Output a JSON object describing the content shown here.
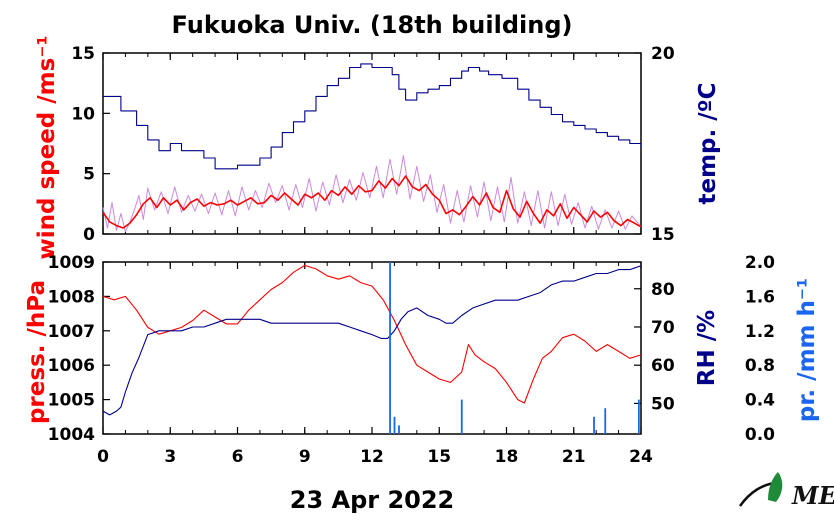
{
  "colors": {
    "wind": "#ff0000",
    "wind_raw": "#cc88dd",
    "temp": "#00008b",
    "pressure": "#ff0000",
    "rh": "#00008b",
    "precip": "#1a66ee"
  },
  "logo": {
    "text": "MES",
    "icon": "leaf-logo-icon"
  },
  "chart_data": [
    {
      "type": "line",
      "title": "Fukuoka Univ. (18th building)",
      "xlabel": "",
      "x_ticks": [
        0,
        3,
        6,
        9,
        12,
        15,
        18,
        21,
        24
      ],
      "x_tick_labels": [
        "0",
        "3",
        "6",
        "9",
        "12",
        "15",
        "18",
        "21",
        "24"
      ],
      "xlim": [
        0,
        24
      ],
      "y_left": {
        "label": "wind speed /ms⁻¹",
        "lim": [
          0,
          15
        ],
        "ticks": [
          "0",
          "5",
          "10",
          "15"
        ]
      },
      "y_right": {
        "label": "temp. /ºC",
        "lim": [
          15,
          20
        ],
        "ticks": [
          "15",
          "20"
        ]
      },
      "series": [
        {
          "name": "",
          "axis": "right",
          "style": "step",
          "x": [
            0,
            0.5,
            0.8,
            1.5,
            2,
            2.5,
            3,
            3.5,
            4,
            4.5,
            5,
            5.5,
            6,
            6.5,
            7,
            7.5,
            8,
            8.5,
            9,
            9.5,
            10,
            10.5,
            11,
            11.5,
            12,
            12.5,
            12.9,
            13.2,
            13.5,
            14,
            14.5,
            15,
            15.5,
            16,
            16.3,
            16.8,
            17.2,
            17.8,
            18.5,
            19,
            19.5,
            20,
            20.5,
            21,
            21.5,
            22,
            22.5,
            23,
            23.5,
            24
          ],
          "y": [
            18.8,
            18.8,
            18.4,
            18.0,
            17.6,
            17.3,
            17.5,
            17.3,
            17.3,
            17.1,
            16.8,
            16.8,
            16.9,
            16.9,
            17.1,
            17.4,
            17.8,
            18.1,
            18.4,
            18.8,
            19.1,
            19.3,
            19.6,
            19.7,
            19.6,
            19.6,
            19.4,
            19.0,
            18.7,
            18.9,
            19.0,
            19.1,
            19.3,
            19.5,
            19.6,
            19.5,
            19.4,
            19.3,
            19.0,
            18.7,
            18.5,
            18.3,
            18.1,
            18.0,
            17.9,
            17.8,
            17.7,
            17.6,
            17.5,
            17.4
          ]
        },
        {
          "name": "",
          "axis": "left",
          "style": "raw",
          "x": [
            0,
            0.2,
            0.4,
            0.6,
            0.8,
            1.0,
            1.2,
            1.4,
            1.6,
            1.8,
            2.0,
            2.3,
            2.6,
            2.9,
            3.2,
            3.5,
            3.8,
            4.1,
            4.4,
            4.7,
            5.0,
            5.3,
            5.6,
            5.9,
            6.2,
            6.5,
            6.8,
            7.1,
            7.4,
            7.7,
            8.0,
            8.3,
            8.6,
            8.9,
            9.2,
            9.5,
            9.8,
            10.1,
            10.4,
            10.7,
            11.0,
            11.3,
            11.6,
            11.9,
            12.2,
            12.5,
            12.8,
            13.1,
            13.4,
            13.7,
            14.0,
            14.3,
            14.6,
            14.9,
            15.2,
            15.5,
            15.8,
            16.1,
            16.4,
            16.7,
            17.0,
            17.3,
            17.6,
            17.9,
            18.2,
            18.5,
            18.8,
            19.1,
            19.4,
            19.7,
            20.0,
            20.3,
            20.6,
            20.9,
            21.2,
            21.5,
            21.8,
            22.1,
            22.4,
            22.7,
            23.0,
            23.3,
            23.6,
            24.0
          ],
          "y": [
            2.2,
            0.5,
            2.6,
            0.3,
            1.7,
            0.2,
            1.0,
            2.0,
            3.2,
            1.2,
            3.8,
            2.0,
            3.5,
            1.7,
            3.9,
            1.8,
            3.2,
            1.9,
            3.3,
            1.7,
            3.4,
            1.6,
            3.6,
            1.5,
            3.9,
            2.0,
            3.6,
            2.2,
            4.2,
            2.6,
            4.0,
            2.0,
            4.1,
            2.2,
            4.6,
            1.9,
            4.3,
            2.4,
            4.9,
            2.6,
            4.5,
            2.8,
            5.1,
            3.0,
            5.6,
            3.0,
            6.2,
            3.3,
            6.5,
            2.9,
            5.6,
            2.7,
            4.9,
            1.8,
            4.1,
            0.9,
            3.6,
            1.0,
            4.0,
            1.4,
            4.3,
            1.1,
            3.9,
            1.0,
            4.7,
            0.9,
            3.5,
            0.7,
            3.6,
            0.5,
            3.5,
            0.7,
            3.3,
            0.8,
            2.6,
            0.5,
            2.3,
            0.4,
            2.0,
            0.5,
            1.9,
            0.4,
            1.5,
            0.6
          ]
        },
        {
          "name": "",
          "axis": "left",
          "style": "smooth",
          "x": [
            0,
            0.3,
            0.6,
            0.9,
            1.2,
            1.5,
            1.8,
            2.1,
            2.4,
            2.7,
            3.0,
            3.3,
            3.6,
            3.9,
            4.2,
            4.5,
            4.8,
            5.1,
            5.4,
            5.7,
            6.0,
            6.3,
            6.6,
            6.9,
            7.2,
            7.5,
            7.8,
            8.1,
            8.4,
            8.7,
            9.0,
            9.3,
            9.6,
            9.9,
            10.2,
            10.5,
            10.8,
            11.1,
            11.4,
            11.7,
            12.0,
            12.3,
            12.6,
            12.9,
            13.2,
            13.5,
            13.8,
            14.1,
            14.4,
            14.7,
            15.0,
            15.3,
            15.6,
            15.9,
            16.2,
            16.5,
            16.8,
            17.1,
            17.4,
            17.7,
            18.0,
            18.3,
            18.6,
            18.9,
            19.2,
            19.5,
            19.8,
            20.1,
            20.4,
            20.7,
            21.0,
            21.3,
            21.6,
            21.9,
            22.2,
            22.5,
            22.8,
            23.1,
            23.4,
            23.7,
            24.0
          ],
          "y": [
            1.8,
            1.0,
            0.7,
            0.5,
            0.9,
            1.6,
            2.5,
            3.0,
            2.2,
            3.0,
            2.4,
            2.8,
            2.0,
            2.6,
            2.9,
            2.3,
            2.6,
            2.4,
            2.5,
            2.8,
            2.4,
            2.7,
            3.0,
            2.5,
            2.6,
            3.2,
            2.8,
            3.4,
            2.9,
            2.4,
            3.3,
            3.0,
            3.4,
            2.8,
            3.6,
            3.2,
            3.9,
            3.3,
            4.0,
            3.5,
            3.6,
            4.4,
            3.8,
            4.6,
            4.0,
            4.8,
            3.9,
            3.6,
            4.1,
            3.3,
            2.8,
            1.7,
            2.0,
            1.6,
            2.3,
            3.1,
            2.4,
            3.4,
            2.2,
            1.8,
            3.6,
            2.1,
            1.4,
            2.7,
            1.7,
            0.9,
            2.0,
            1.5,
            2.5,
            1.3,
            2.2,
            1.6,
            1.0,
            1.9,
            1.4,
            1.8,
            1.1,
            0.7,
            1.2,
            0.9,
            0.6
          ]
        }
      ]
    },
    {
      "type": "line",
      "xlabel": "23 Apr 2022",
      "x_ticks": [
        0,
        3,
        6,
        9,
        12,
        15,
        18,
        21,
        24
      ],
      "x_tick_labels": [
        "0",
        "3",
        "6",
        "9",
        "12",
        "15",
        "18",
        "21",
        "24"
      ],
      "xlim": [
        0,
        24
      ],
      "y_left": {
        "label": "press. /hPa",
        "lim": [
          1004,
          1009
        ],
        "ticks": [
          "1004",
          "1005",
          "1006",
          "1007",
          "1008",
          "1009"
        ]
      },
      "y_right": {
        "label": "RH /%",
        "lim": [
          42,
          87
        ],
        "ticks": [
          "50",
          "60",
          "70",
          "80"
        ]
      },
      "y_right2": {
        "label": "pr. /mm h⁻¹",
        "lim": [
          0,
          2
        ],
        "ticks": [
          "0.0",
          "0.4",
          "0.8",
          "1.2",
          "1.6",
          "2.0"
        ]
      },
      "series": [
        {
          "name": "",
          "axis": "left",
          "x": [
            0,
            0.5,
            1.0,
            1.5,
            2.0,
            2.5,
            3.0,
            3.5,
            4.0,
            4.5,
            5.0,
            5.5,
            6.0,
            6.5,
            7.0,
            7.5,
            8.0,
            8.5,
            9.0,
            9.5,
            10.0,
            10.5,
            11.0,
            11.5,
            12.0,
            12.5,
            13.0,
            13.5,
            14.0,
            14.5,
            15.0,
            15.5,
            16.0,
            16.3,
            16.6,
            17.0,
            17.5,
            18.0,
            18.5,
            18.8,
            19.2,
            19.6,
            20.0,
            20.5,
            21.0,
            21.5,
            22.0,
            22.5,
            23.0,
            23.5,
            24.0
          ],
          "y": [
            1008.0,
            1007.9,
            1008.0,
            1007.6,
            1007.1,
            1006.9,
            1007.0,
            1007.1,
            1007.3,
            1007.6,
            1007.4,
            1007.2,
            1007.2,
            1007.6,
            1007.9,
            1008.2,
            1008.4,
            1008.7,
            1008.9,
            1008.8,
            1008.6,
            1008.5,
            1008.6,
            1008.4,
            1008.3,
            1007.9,
            1007.3,
            1006.6,
            1006.0,
            1005.8,
            1005.6,
            1005.5,
            1005.8,
            1006.6,
            1006.3,
            1006.1,
            1005.9,
            1005.5,
            1005.0,
            1004.9,
            1005.6,
            1006.2,
            1006.4,
            1006.8,
            1006.9,
            1006.7,
            1006.4,
            1006.6,
            1006.4,
            1006.2,
            1006.3
          ]
        },
        {
          "name": "",
          "axis": "right",
          "x": [
            0,
            0.3,
            0.6,
            0.8,
            1.0,
            1.3,
            1.6,
            2.0,
            2.5,
            3.0,
            3.5,
            4.0,
            4.5,
            5.0,
            5.5,
            6.0,
            6.5,
            7.0,
            7.5,
            8.0,
            8.5,
            9.0,
            9.5,
            10.0,
            10.5,
            11.0,
            11.5,
            12.0,
            12.4,
            12.7,
            13.0,
            13.3,
            13.6,
            14.0,
            14.5,
            15.0,
            15.3,
            15.6,
            16.0,
            16.5,
            17.0,
            17.5,
            18.0,
            18.5,
            19.0,
            19.5,
            20.0,
            20.5,
            21.0,
            21.5,
            22.0,
            22.5,
            23.0,
            23.5,
            24.0
          ],
          "y": [
            48,
            47,
            48,
            49,
            53,
            58,
            62,
            68,
            69,
            69,
            69,
            70,
            70,
            71,
            72,
            72,
            72,
            72,
            71,
            71,
            71,
            71,
            71,
            71,
            71,
            70,
            69,
            68,
            67,
            67,
            69,
            72,
            74,
            75,
            73,
            72,
            71,
            71,
            73,
            75,
            76,
            77,
            77,
            77,
            78,
            79,
            81,
            82,
            82,
            83,
            84,
            84,
            85,
            85,
            86
          ]
        },
        {
          "name": "",
          "axis": "right2",
          "type": "bar",
          "x": [
            12.8,
            13.0,
            13.2,
            16.0,
            21.9,
            22.4,
            23.9
          ],
          "y": [
            2.0,
            0.2,
            0.1,
            0.4,
            0.2,
            0.3,
            0.4
          ]
        }
      ]
    }
  ]
}
